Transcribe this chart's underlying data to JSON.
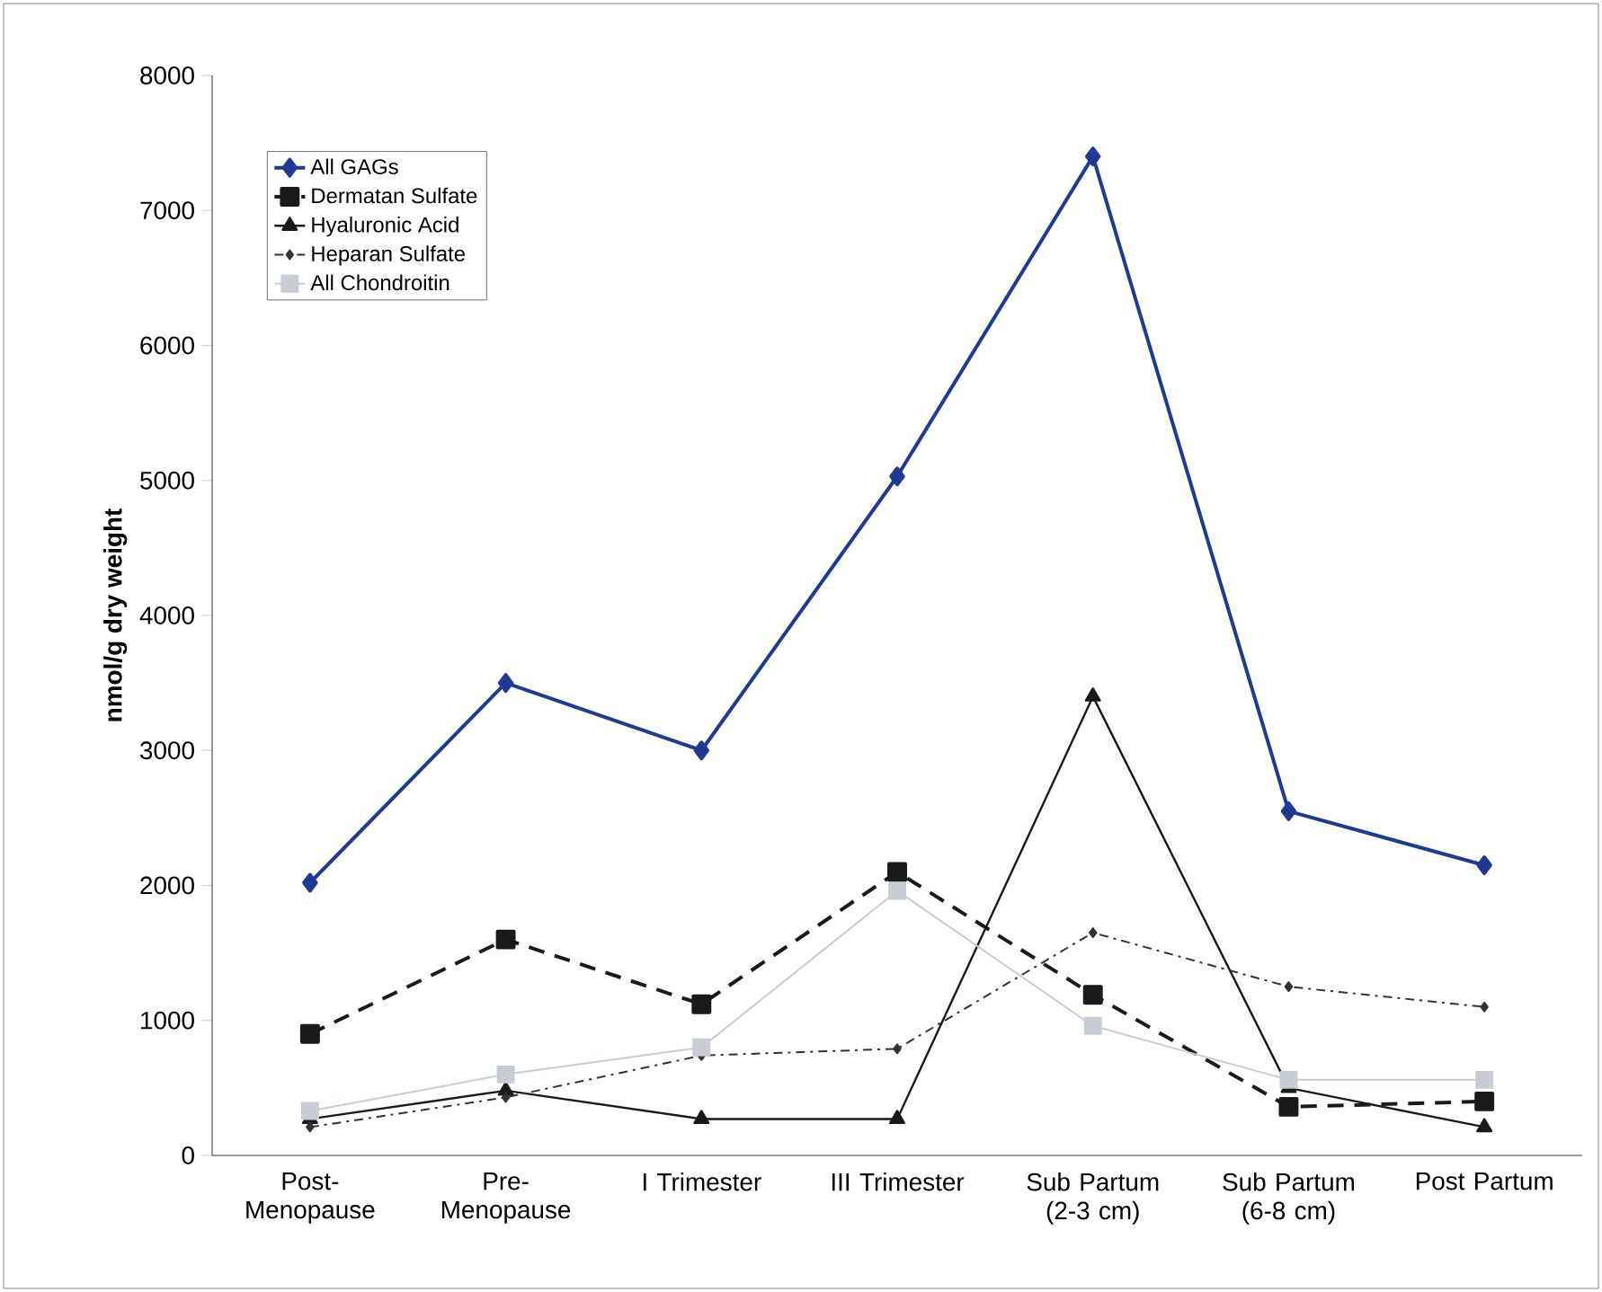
{
  "chart_data": {
    "type": "line",
    "ylabel": "nmol/g dry weight",
    "categories": [
      "Post-Menopause",
      "Pre-Menopause",
      "I Trimester",
      "III Trimester",
      "Sub Partum (2-3 cm)",
      "Sub Partum (6-8 cm)",
      "Post Partum"
    ],
    "series": [
      {
        "name": "All GAGs",
        "color": "#1f3a93",
        "marker": "diamond",
        "line_style": "solid",
        "values": [
          2020,
          3500,
          3000,
          5030,
          7400,
          2550,
          2150
        ]
      },
      {
        "name": "Dermatan Sulfate",
        "color": "#1a1a1a",
        "marker": "square",
        "line_style": "dashed",
        "values": [
          900,
          1600,
          1120,
          2100,
          1190,
          360,
          400
        ]
      },
      {
        "name": "Hyaluronic Acid",
        "color": "#1a1a1a",
        "marker": "triangle",
        "line_style": "solid",
        "values": [
          270,
          480,
          270,
          270,
          3400,
          500,
          210
        ]
      },
      {
        "name": "Heparan Sulfate",
        "color": "#333333",
        "marker": "diamond",
        "line_style": "dotted",
        "values": [
          210,
          430,
          740,
          790,
          1650,
          1250,
          1100
        ]
      },
      {
        "name": "All Chondroitin",
        "color": "#c8ccd4",
        "marker": "square",
        "line_style": "solid",
        "values": [
          330,
          600,
          800,
          1960,
          960,
          560,
          560
        ]
      }
    ],
    "ylim": [
      0,
      8000
    ],
    "yticks": [
      0,
      1000,
      2000,
      3000,
      4000,
      5000,
      6000,
      7000,
      8000
    ],
    "legend": "top left",
    "grid": false
  }
}
